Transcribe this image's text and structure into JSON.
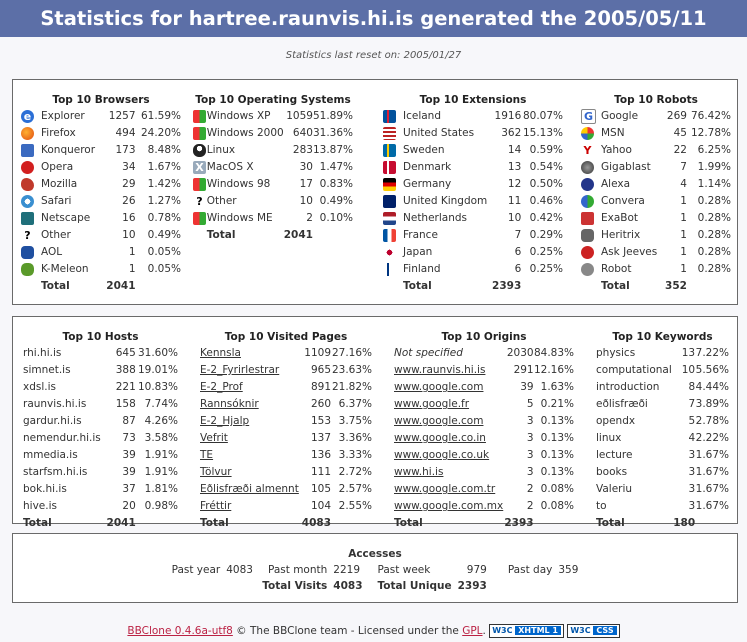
{
  "header": {
    "title": "Statistics for hartree.raunvis.hi.is generated the 2005/05/11"
  },
  "reset_text": "Statistics last reset on: 2005/01/27",
  "browsers": {
    "title": "Top 10 Browsers",
    "rows": [
      {
        "icon": "explorer-icon",
        "name": "Explorer",
        "count": "1257",
        "pct": "61.59%"
      },
      {
        "icon": "firefox-icon",
        "name": "Firefox",
        "count": "494",
        "pct": "24.20%"
      },
      {
        "icon": "konqueror-icon",
        "name": "Konqueror",
        "count": "173",
        "pct": "8.48%"
      },
      {
        "icon": "opera-icon",
        "name": "Opera",
        "count": "34",
        "pct": "1.67%"
      },
      {
        "icon": "mozilla-icon",
        "name": "Mozilla",
        "count": "29",
        "pct": "1.42%"
      },
      {
        "icon": "safari-icon",
        "name": "Safari",
        "count": "26",
        "pct": "1.27%"
      },
      {
        "icon": "netscape-icon",
        "name": "Netscape",
        "count": "16",
        "pct": "0.78%"
      },
      {
        "icon": "question-icon",
        "name": "Other",
        "count": "10",
        "pct": "0.49%"
      },
      {
        "icon": "aol-icon",
        "name": "AOL",
        "count": "1",
        "pct": "0.05%"
      },
      {
        "icon": "kmeleon-icon",
        "name": "K-Meleon",
        "count": "1",
        "pct": "0.05%"
      }
    ],
    "total_label": "Total",
    "total": "2041"
  },
  "os": {
    "title": "Top 10 Operating Systems",
    "rows": [
      {
        "icon": "windows-icon",
        "name": "Windows XP",
        "count": "1059",
        "pct": "51.89%"
      },
      {
        "icon": "windows-icon",
        "name": "Windows 2000",
        "count": "640",
        "pct": "31.36%"
      },
      {
        "icon": "linux-icon",
        "name": "Linux",
        "count": "283",
        "pct": "13.87%"
      },
      {
        "icon": "macos-icon",
        "name": "MacOS X",
        "count": "30",
        "pct": "1.47%"
      },
      {
        "icon": "windows-icon",
        "name": "Windows 98",
        "count": "17",
        "pct": "0.83%"
      },
      {
        "icon": "question-icon",
        "name": "Other",
        "count": "10",
        "pct": "0.49%"
      },
      {
        "icon": "windows-icon",
        "name": "Windows ME",
        "count": "2",
        "pct": "0.10%"
      }
    ],
    "total_label": "Total",
    "total": "2041"
  },
  "extensions": {
    "title": "Top 10 Extensions",
    "rows": [
      {
        "icon": "flag-iceland-icon",
        "name": "Iceland",
        "count": "1916",
        "pct": "80.07%"
      },
      {
        "icon": "flag-us-icon",
        "name": "United States",
        "count": "362",
        "pct": "15.13%"
      },
      {
        "icon": "flag-sweden-icon",
        "name": "Sweden",
        "count": "14",
        "pct": "0.59%"
      },
      {
        "icon": "flag-denmark-icon",
        "name": "Denmark",
        "count": "13",
        "pct": "0.54%"
      },
      {
        "icon": "flag-germany-icon",
        "name": "Germany",
        "count": "12",
        "pct": "0.50%"
      },
      {
        "icon": "flag-uk-icon",
        "name": "United Kingdom",
        "count": "11",
        "pct": "0.46%"
      },
      {
        "icon": "flag-netherlands-icon",
        "name": "Netherlands",
        "count": "10",
        "pct": "0.42%"
      },
      {
        "icon": "flag-france-icon",
        "name": "France",
        "count": "7",
        "pct": "0.29%"
      },
      {
        "icon": "flag-japan-icon",
        "name": "Japan",
        "count": "6",
        "pct": "0.25%"
      },
      {
        "icon": "flag-finland-icon",
        "name": "Finland",
        "count": "6",
        "pct": "0.25%"
      }
    ],
    "total_label": "Total",
    "total": "2393"
  },
  "robots": {
    "title": "Top 10 Robots",
    "rows": [
      {
        "icon": "google-icon",
        "name": "Google",
        "count": "269",
        "pct": "76.42%"
      },
      {
        "icon": "msn-icon",
        "name": "MSN",
        "count": "45",
        "pct": "12.78%"
      },
      {
        "icon": "yahoo-icon",
        "name": "Yahoo",
        "count": "22",
        "pct": "6.25%"
      },
      {
        "icon": "gigablast-icon",
        "name": "Gigablast",
        "count": "7",
        "pct": "1.99%"
      },
      {
        "icon": "alexa-icon",
        "name": "Alexa",
        "count": "4",
        "pct": "1.14%"
      },
      {
        "icon": "convera-icon",
        "name": "Convera",
        "count": "1",
        "pct": "0.28%"
      },
      {
        "icon": "exabot-icon",
        "name": "ExaBot",
        "count": "1",
        "pct": "0.28%"
      },
      {
        "icon": "heritrix-icon",
        "name": "Heritrix",
        "count": "1",
        "pct": "0.28%"
      },
      {
        "icon": "askjeeves-icon",
        "name": "Ask Jeeves",
        "count": "1",
        "pct": "0.28%"
      },
      {
        "icon": "robot-icon",
        "name": "Robot",
        "count": "1",
        "pct": "0.28%"
      }
    ],
    "total_label": "Total",
    "total": "352"
  },
  "hosts": {
    "title": "Top 10 Hosts",
    "rows": [
      {
        "name": "rhi.hi.is",
        "count": "645",
        "pct": "31.60%"
      },
      {
        "name": "simnet.is",
        "count": "388",
        "pct": "19.01%"
      },
      {
        "name": "xdsl.is",
        "count": "221",
        "pct": "10.83%"
      },
      {
        "name": "raunvis.hi.is",
        "count": "158",
        "pct": "7.74%"
      },
      {
        "name": "gardur.hi.is",
        "count": "87",
        "pct": "4.26%"
      },
      {
        "name": "nemendur.hi.is",
        "count": "73",
        "pct": "3.58%"
      },
      {
        "name": "mmedia.is",
        "count": "39",
        "pct": "1.91%"
      },
      {
        "name": "starfsm.hi.is",
        "count": "39",
        "pct": "1.91%"
      },
      {
        "name": "bok.hi.is",
        "count": "37",
        "pct": "1.81%"
      },
      {
        "name": "hive.is",
        "count": "20",
        "pct": "0.98%"
      }
    ],
    "total_label": "Total",
    "total": "2041"
  },
  "pages": {
    "title": "Top 10 Visited Pages",
    "rows": [
      {
        "name": "Kennsla",
        "count": "1109",
        "pct": "27.16%"
      },
      {
        "name": "E-2_Fyrirlestrar",
        "count": "965",
        "pct": "23.63%"
      },
      {
        "name": "E-2_Prof",
        "count": "891",
        "pct": "21.82%"
      },
      {
        "name": "Rannsóknir",
        "count": "260",
        "pct": "6.37%"
      },
      {
        "name": "E-2_Hjalp",
        "count": "153",
        "pct": "3.75%"
      },
      {
        "name": "Vefrit",
        "count": "137",
        "pct": "3.36%"
      },
      {
        "name": "TE",
        "count": "136",
        "pct": "3.33%"
      },
      {
        "name": "Tölvur",
        "count": "111",
        "pct": "2.72%"
      },
      {
        "name": "Eðlisfræði almennt",
        "count": "105",
        "pct": "2.57%"
      },
      {
        "name": "Fréttir",
        "count": "104",
        "pct": "2.55%"
      }
    ],
    "total_label": "Total",
    "total": "4083"
  },
  "origins": {
    "title": "Top 10 Origins",
    "rows": [
      {
        "name": "Not specified",
        "count": "2030",
        "pct": "84.83%",
        "link": false
      },
      {
        "name": "www.raunvis.hi.is",
        "count": "291",
        "pct": "12.16%",
        "link": true
      },
      {
        "name": "www.google.com",
        "count": "39",
        "pct": "1.63%",
        "link": true
      },
      {
        "name": "www.google.fr",
        "count": "5",
        "pct": "0.21%",
        "link": true
      },
      {
        "name": "www.google.com",
        "count": "3",
        "pct": "0.13%",
        "link": true
      },
      {
        "name": "www.google.co.in",
        "count": "3",
        "pct": "0.13%",
        "link": true
      },
      {
        "name": "www.google.co.uk",
        "count": "3",
        "pct": "0.13%",
        "link": true
      },
      {
        "name": "www.hi.is",
        "count": "3",
        "pct": "0.13%",
        "link": true
      },
      {
        "name": "www.google.com.tr",
        "count": "2",
        "pct": "0.08%",
        "link": true
      },
      {
        "name": "www.google.com.mx",
        "count": "2",
        "pct": "0.08%",
        "link": true
      }
    ],
    "total_label": "Total",
    "total": "2393"
  },
  "keywords": {
    "title": "Top 10 Keywords",
    "rows": [
      {
        "name": "physics",
        "count": "13",
        "pct": "7.22%"
      },
      {
        "name": "computational",
        "count": "10",
        "pct": "5.56%"
      },
      {
        "name": "introduction",
        "count": "8",
        "pct": "4.44%"
      },
      {
        "name": "eðlisfræði",
        "count": "7",
        "pct": "3.89%"
      },
      {
        "name": "opendx",
        "count": "5",
        "pct": "2.78%"
      },
      {
        "name": "linux",
        "count": "4",
        "pct": "2.22%"
      },
      {
        "name": "lecture",
        "count": "3",
        "pct": "1.67%"
      },
      {
        "name": "books",
        "count": "3",
        "pct": "1.67%"
      },
      {
        "name": "Valeriu",
        "count": "3",
        "pct": "1.67%"
      },
      {
        "name": "to",
        "count": "3",
        "pct": "1.67%"
      }
    ],
    "total_label": "Total",
    "total": "180"
  },
  "accesses": {
    "title": "Accesses",
    "past_year_label": "Past year",
    "past_year": "4083",
    "past_month_label": "Past month",
    "past_month": "2219",
    "past_week_label": "Past week",
    "past_week": "979",
    "past_day_label": "Past day",
    "past_day": "359",
    "total_visits_label": "Total Visits",
    "total_visits": "4083",
    "total_unique_label": "Total Unique",
    "total_unique": "2393"
  },
  "footer": {
    "link": "BBClone 0.4.6a-utf8",
    "text1": " © The BBClone team - Licensed under the ",
    "gpl": "GPL",
    "text2": ".",
    "badge1_w3": "W3C",
    "badge1": "XHTML 1",
    "badge2_w3": "W3C",
    "badge2": "CSS"
  },
  "colors": {
    "header_bg": "#5c6fa7",
    "link": "#b24"
  }
}
